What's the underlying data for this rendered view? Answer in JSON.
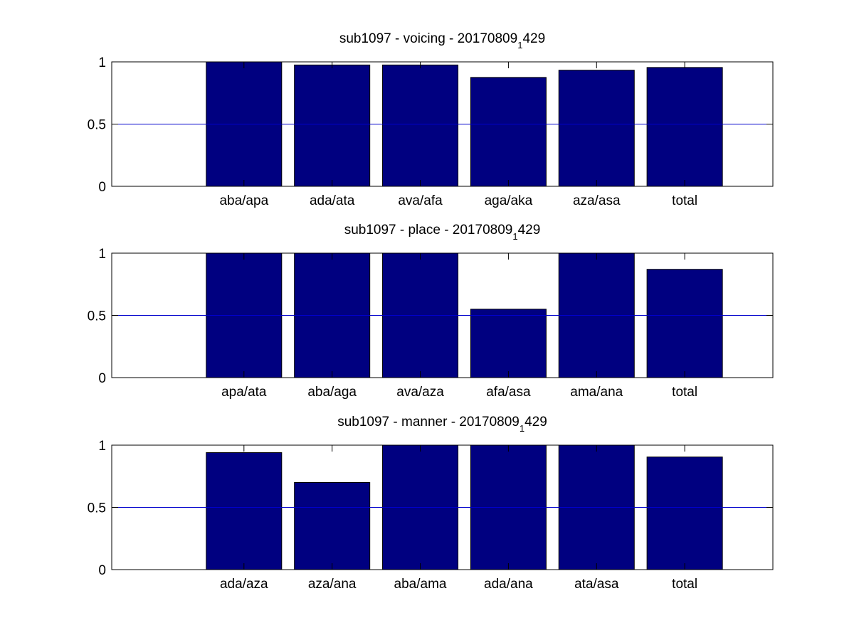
{
  "figure": {
    "background": "#ffffff",
    "bar_color": "#000080",
    "reference_line_color": "#0000cc"
  },
  "chart_data": [
    {
      "type": "bar",
      "title": {
        "prefix": "sub1097 - voicing - 20170809",
        "subscript": "1",
        "suffix": "429"
      },
      "categories": [
        "aba/apa",
        "ada/ata",
        "ava/afa",
        "aga/aka",
        "aza/asa",
        "total"
      ],
      "values": [
        1.0,
        0.975,
        0.975,
        0.875,
        0.933,
        0.955
      ],
      "reference_line": 0.5,
      "ylim": [
        0,
        1
      ],
      "yticks": [
        0,
        0.5,
        1
      ],
      "ytick_labels": [
        "0",
        "0.5",
        "1"
      ],
      "grid": false,
      "xlabel": "",
      "ylabel": ""
    },
    {
      "type": "bar",
      "title": {
        "prefix": "sub1097 - place - 20170809",
        "subscript": "1",
        "suffix": "429"
      },
      "categories": [
        "apa/ata",
        "aba/aga",
        "ava/aza",
        "afa/asa",
        "ama/ana",
        "total"
      ],
      "values": [
        1.0,
        1.0,
        1.0,
        0.55,
        1.0,
        0.87
      ],
      "reference_line": 0.5,
      "ylim": [
        0,
        1
      ],
      "yticks": [
        0,
        0.5,
        1
      ],
      "ytick_labels": [
        "0",
        "0.5",
        "1"
      ],
      "grid": false,
      "xlabel": "",
      "ylabel": ""
    },
    {
      "type": "bar",
      "title": {
        "prefix": "sub1097 - manner - 20170809",
        "subscript": "1",
        "suffix": "429"
      },
      "categories": [
        "ada/aza",
        "aza/ana",
        "aba/ama",
        "ada/ana",
        "ata/asa",
        "total"
      ],
      "values": [
        0.94,
        0.7,
        1.0,
        1.0,
        1.0,
        0.905
      ],
      "reference_line": 0.5,
      "ylim": [
        0,
        1
      ],
      "yticks": [
        0,
        0.5,
        1
      ],
      "ytick_labels": [
        "0",
        "0.5",
        "1"
      ],
      "grid": false,
      "xlabel": "",
      "ylabel": ""
    }
  ]
}
